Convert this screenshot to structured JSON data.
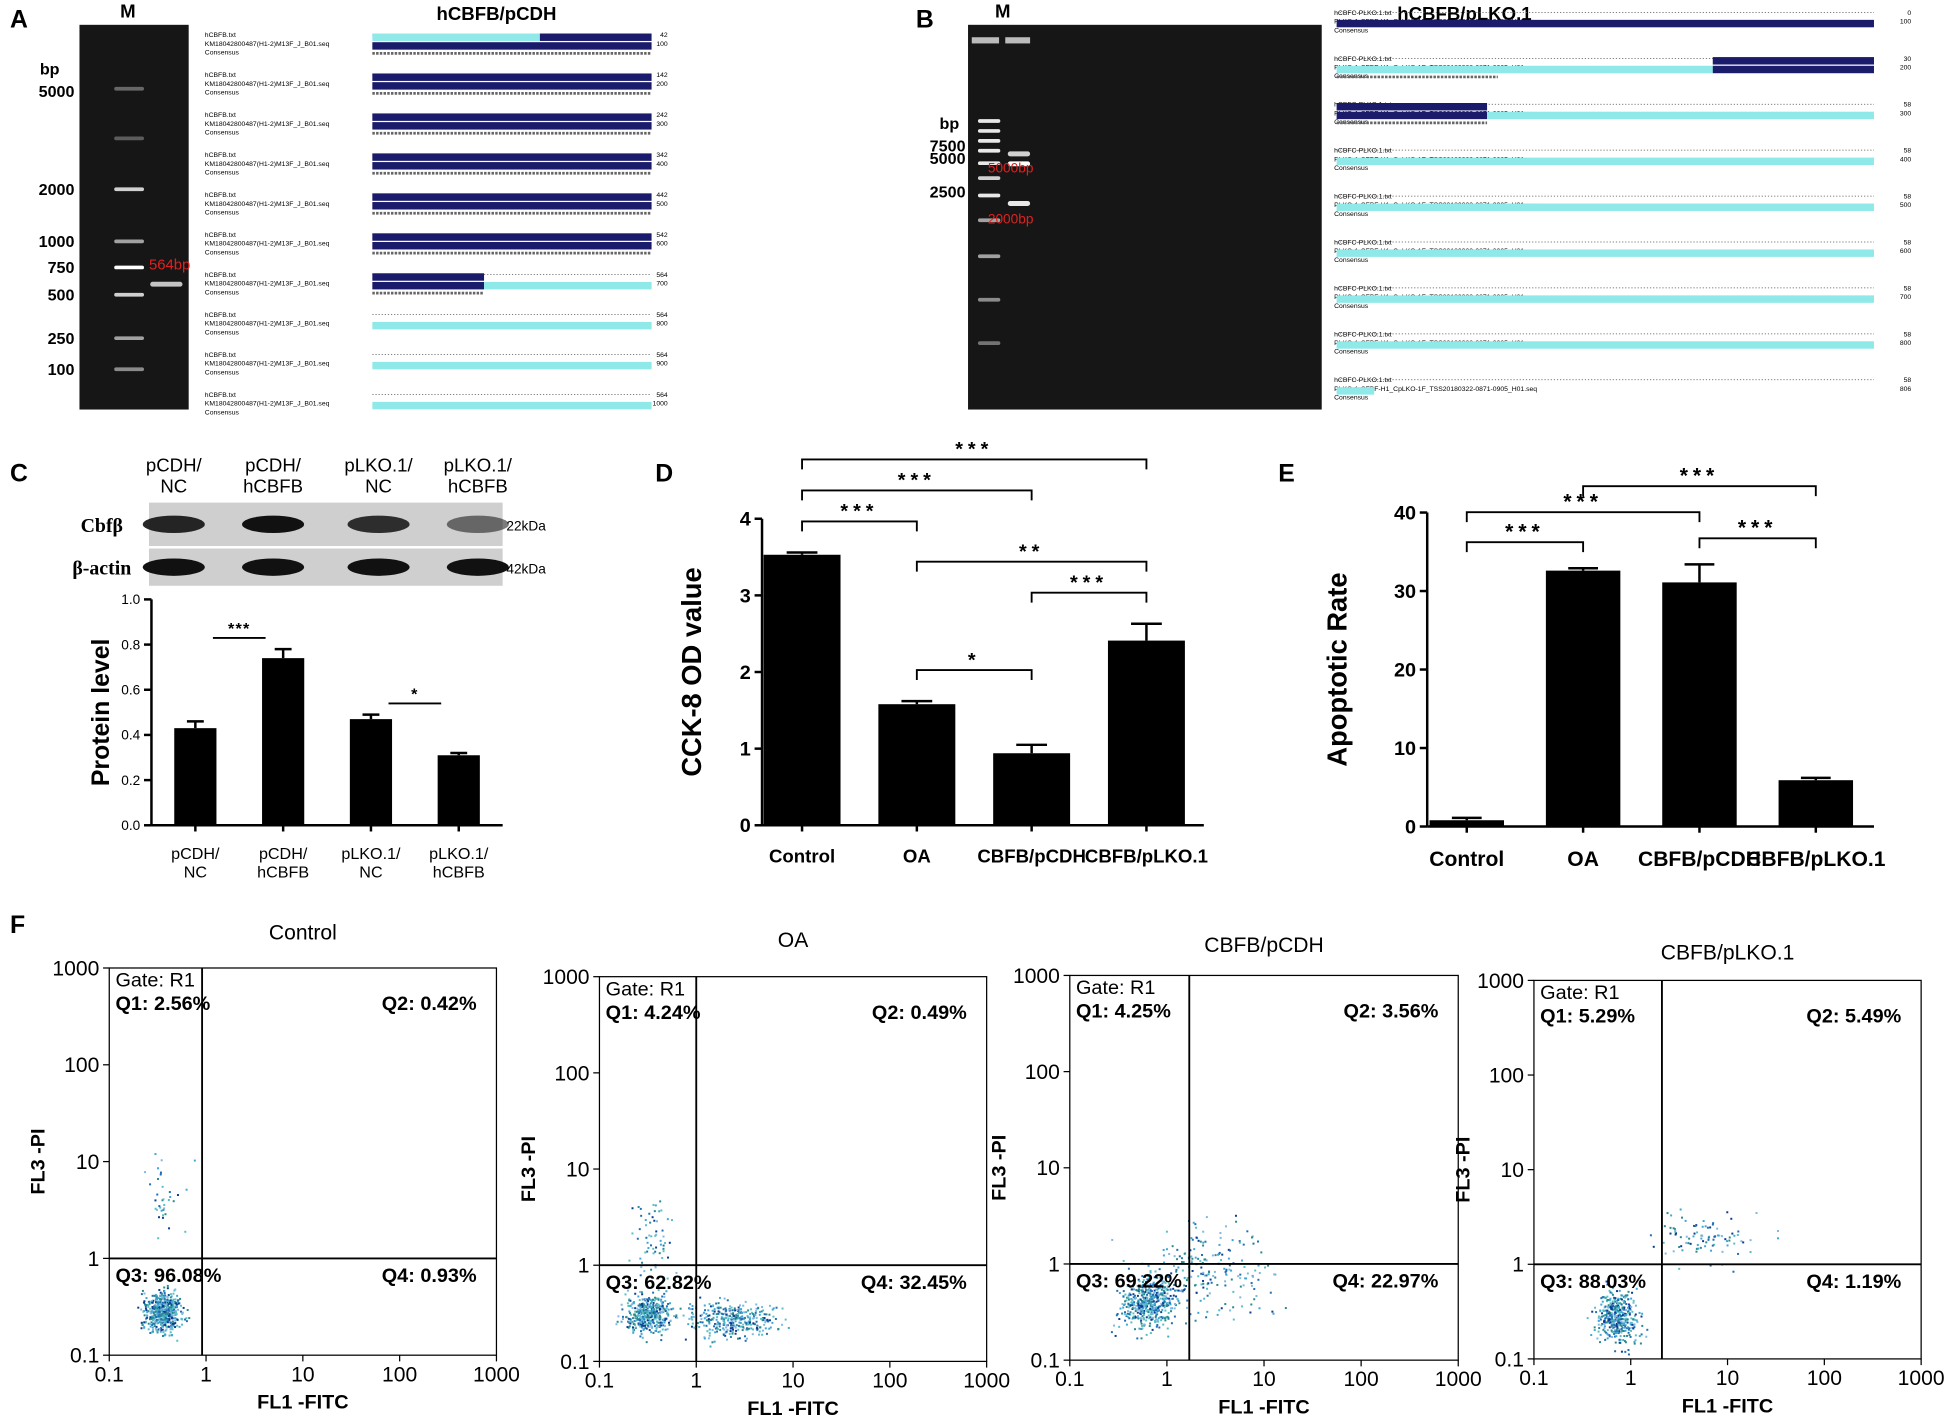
{
  "panel_labels": {
    "a": "A",
    "b": "B",
    "c": "C",
    "d": "D",
    "e": "E",
    "f": "F"
  },
  "gel_a": {
    "title": "hCBFB/pCDH",
    "lane": "M",
    "unit": "bp",
    "markers": [
      "5000",
      "2000",
      "1000",
      "750",
      "500",
      "250",
      "100"
    ],
    "band_label": "564bp",
    "alignment": {
      "rows": [
        "hCBFB.txt",
        "KM18042800487(H1-2)M13F_J_B01.seq",
        "Consensus"
      ],
      "positions": [
        [
          "42",
          "100"
        ],
        [
          "142",
          "200"
        ],
        [
          "242",
          "300"
        ],
        [
          "342",
          "400"
        ],
        [
          "442",
          "500"
        ],
        [
          "542",
          "600"
        ],
        [
          "564",
          "700"
        ],
        [
          "564",
          "800"
        ],
        [
          "564",
          "900"
        ],
        [
          "564",
          "1000"
        ]
      ]
    }
  },
  "gel_b": {
    "title": "hCBFB/pLKO.1",
    "lane": "M",
    "unit": "bp",
    "markers": [
      "7500",
      "5000",
      "2500"
    ],
    "band_labels": [
      "5000bp",
      "2000bp"
    ],
    "alignment": {
      "rows": [
        "hCBFC-PLKO.1.txt",
        "PLKO-1-CFBF-H1_CpLKO-1F_TSS20180322-0871-0905_H01.seq",
        "Consensus"
      ],
      "positions": [
        [
          "0",
          "100"
        ],
        [
          "30",
          "200"
        ],
        [
          "58",
          "300"
        ],
        [
          "58",
          "400"
        ],
        [
          "58",
          "500"
        ],
        [
          "58",
          "600"
        ],
        [
          "58",
          "700"
        ],
        [
          "58",
          "800"
        ],
        [
          "58",
          "806"
        ]
      ]
    }
  },
  "western": {
    "lanes": [
      "pCDH/\nNC",
      "pCDH/\nhCBFB",
      "pLKO.1/\nNC",
      "pLKO.1/\nhCBFB"
    ],
    "proteins": [
      "Cbfβ",
      "β-actin"
    ],
    "sizes": [
      "22kDa",
      "42kDa"
    ]
  },
  "chart_data": [
    {
      "type": "bar",
      "ylabel": "Protein level",
      "categories": [
        "pCDH/\nNC",
        "pCDH/\nhCBFB",
        "pLKO.1/\nNC",
        "pLKO.1/\nhCBFB"
      ],
      "values": [
        0.43,
        0.74,
        0.47,
        0.31
      ],
      "errors": [
        0.03,
        0.04,
        0.02,
        0.01
      ],
      "color": "#000000",
      "ylim": [
        0,
        1
      ],
      "yticks": [
        {
          "value": 0,
          "label": "0.0"
        },
        0.2,
        0.4,
        0.6,
        0.8,
        {
          "value": 1,
          "label": "1.0"
        }
      ],
      "significance": [
        {
          "pair": [
            0,
            1
          ],
          "label": "***"
        },
        {
          "pair": [
            2,
            3
          ],
          "label": "*"
        }
      ]
    },
    {
      "type": "bar",
      "ylabel": "CCK-8 OD value",
      "categories": [
        "Control",
        "OA",
        "CBFB/pCDH",
        "CBFB/pLKO.1"
      ],
      "values": [
        3.53,
        1.58,
        0.94,
        2.41
      ],
      "errors": [
        0.03,
        0.04,
        0.11,
        0.22
      ],
      "color": "#000000",
      "ylim": [
        0,
        4
      ],
      "yticks": [
        0,
        1,
        2,
        3,
        4
      ],
      "significance": [
        {
          "pair": [
            1,
            2
          ],
          "label": "*"
        },
        {
          "pair": [
            2,
            3
          ],
          "label": "***"
        },
        {
          "pair": [
            1,
            3
          ],
          "label": "**"
        },
        {
          "pair": [
            0,
            1
          ],
          "label": "***"
        },
        {
          "pair": [
            0,
            2
          ],
          "label": "***"
        },
        {
          "pair": [
            0,
            3
          ],
          "label": "***"
        }
      ]
    },
    {
      "type": "bar",
      "ylabel": "Apoptotic Rate",
      "categories": [
        "Control",
        "OA",
        "CBFB/pCDH",
        "CBFB/pLKO.1"
      ],
      "values": [
        0.8,
        32.6,
        31.1,
        5.9
      ],
      "errors": [
        0.3,
        0.3,
        2.3,
        0.3
      ],
      "color": "#000000",
      "ylim": [
        0,
        40
      ],
      "yticks": [
        0,
        10,
        20,
        30,
        40
      ],
      "significance": [
        {
          "pair": [
            2,
            3
          ],
          "label": "***"
        },
        {
          "pair": [
            0,
            1
          ],
          "label": "***"
        },
        {
          "pair": [
            0,
            2
          ],
          "label": "***"
        },
        {
          "pair": [
            1,
            3
          ],
          "label": "***"
        }
      ]
    },
    {
      "type": "flow",
      "title": "Control",
      "xlabel": "FL1 -FITC",
      "ylabel": "FL3 -PI",
      "log_x": true,
      "log_y": true,
      "xlim": [
        0.1,
        1000
      ],
      "ylim": [
        0.1,
        1000
      ],
      "xticks": [
        0.1,
        1,
        10,
        100,
        1000
      ],
      "yticks": [
        0.1,
        1,
        10,
        100,
        1000
      ],
      "gate_label": "Gate: R1",
      "gate_x": 0.91,
      "gate_y": 1,
      "quadrants": [
        "Q1: 2.56%",
        "Q2: 0.42%",
        "Q3: 96.08%",
        "Q4: 0.93%"
      ]
    },
    {
      "type": "flow",
      "title": "OA",
      "xlabel": "FL1 -FITC",
      "ylabel": "FL3 -PI",
      "log_x": true,
      "log_y": true,
      "xlim": [
        0.1,
        1000
      ],
      "ylim": [
        0.1,
        1000
      ],
      "xticks": [
        0.1,
        1,
        10,
        100,
        1000
      ],
      "yticks": [
        0.1,
        1,
        10,
        100,
        1000
      ],
      "gate_label": "Gate: R1",
      "gate_x": 1,
      "gate_y": 1,
      "quadrants": [
        "Q1: 4.24%",
        "Q2: 0.49%",
        "Q3: 62.82%",
        "Q4: 32.45%"
      ]
    },
    {
      "type": "flow",
      "title": "CBFB/pCDH",
      "xlabel": "FL1 -FITC",
      "ylabel": "FL3 -PI",
      "log_x": true,
      "log_y": true,
      "xlim": [
        0.1,
        1000
      ],
      "ylim": [
        0.1,
        1000
      ],
      "xticks": [
        0.1,
        1,
        10,
        100,
        1000
      ],
      "yticks": [
        0.1,
        1,
        10,
        100,
        1000
      ],
      "gate_label": "Gate: R1",
      "gate_x": 1.7,
      "gate_y": 1,
      "quadrants": [
        "Q1: 4.25%",
        "Q2: 3.56%",
        "Q3: 69.22%",
        "Q4: 22.97%"
      ]
    },
    {
      "type": "flow",
      "title": "CBFB/pLKO.1",
      "xlabel": "FL1 -FITC",
      "ylabel": "FL3 -PI",
      "log_x": true,
      "log_y": true,
      "xlim": [
        0.1,
        1000
      ],
      "ylim": [
        0.1,
        1000
      ],
      "xticks": [
        0.1,
        1,
        10,
        100,
        1000
      ],
      "yticks": [
        0.1,
        1,
        10,
        100,
        1000
      ],
      "gate_label": "Gate: R1",
      "gate_x": 2.1,
      "gate_y": 1,
      "quadrants": [
        "Q1: 5.29%",
        "Q2: 5.49%",
        "Q3: 88.03%",
        "Q4: 1.19%"
      ]
    }
  ]
}
